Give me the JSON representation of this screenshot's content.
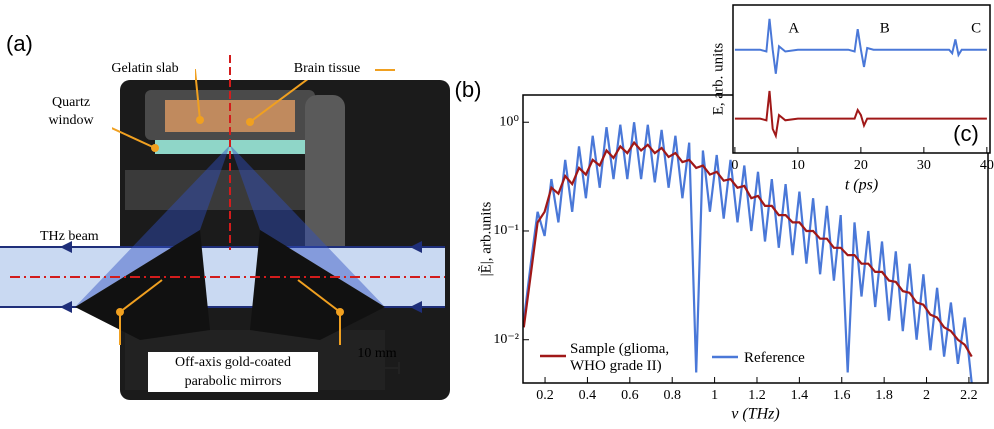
{
  "panel_a": {
    "panel_label": "(a)",
    "gelatin": "Gelatin slab",
    "brain": "Brain tissue",
    "quartz": [
      "Quartz",
      "window"
    ],
    "beam": "THz beam",
    "mirrors": [
      "Off-axis gold-coated",
      "parabolic mirrors"
    ],
    "scale": "10 mm"
  },
  "chart_data": [
    {
      "type": "line",
      "panel_label": "(b)",
      "xlabel": "ν (THz)",
      "ylabel": "|Ẽ|, arb.units",
      "log_y": true,
      "xlim": [
        0.096,
        2.29
      ],
      "ylim": [
        0.004,
        1.78
      ],
      "xticks": [
        0.2,
        0.4,
        0.6,
        0.8,
        1.0,
        1.2,
        1.4,
        1.6,
        1.8,
        2.0,
        2.2
      ],
      "yticks": [
        {
          "value": 0.01,
          "label": "10⁻²"
        },
        {
          "value": 0.1,
          "label": "10⁻¹"
        },
        {
          "value": 1,
          "label": "10⁰"
        }
      ],
      "x": [
        0.1,
        0.133,
        0.165,
        0.198,
        0.23,
        0.263,
        0.295,
        0.328,
        0.36,
        0.393,
        0.425,
        0.458,
        0.49,
        0.523,
        0.555,
        0.588,
        0.62,
        0.653,
        0.685,
        0.718,
        0.75,
        0.783,
        0.815,
        0.848,
        0.88,
        0.913,
        0.945,
        0.978,
        1.01,
        1.043,
        1.075,
        1.108,
        1.14,
        1.173,
        1.205,
        1.238,
        1.27,
        1.303,
        1.335,
        1.368,
        1.4,
        1.433,
        1.465,
        1.498,
        1.53,
        1.563,
        1.595,
        1.628,
        1.66,
        1.693,
        1.725,
        1.758,
        1.79,
        1.823,
        1.855,
        1.888,
        1.92,
        1.953,
        1.985,
        2.018,
        2.05,
        2.083,
        2.115,
        2.148,
        2.18,
        2.213
      ],
      "series": [
        {
          "name": "Reference",
          "color": "#4a78d8",
          "values": [
            0.015,
            0.05,
            0.15,
            0.09,
            0.3,
            0.12,
            0.45,
            0.15,
            0.6,
            0.2,
            0.75,
            0.25,
            0.9,
            0.3,
            0.95,
            0.3,
            1.0,
            0.3,
            0.95,
            0.28,
            0.85,
            0.25,
            0.75,
            0.2,
            0.65,
            0.005,
            0.55,
            0.15,
            0.5,
            0.13,
            0.45,
            0.12,
            0.4,
            0.1,
            0.35,
            0.08,
            0.3,
            0.07,
            0.27,
            0.06,
            0.23,
            0.05,
            0.2,
            0.04,
            0.17,
            0.035,
            0.14,
            0.005,
            0.12,
            0.025,
            0.1,
            0.02,
            0.08,
            0.015,
            0.065,
            0.012,
            0.05,
            0.01,
            0.04,
            0.008,
            0.03,
            0.007,
            0.022,
            0.006,
            0.016,
            0.004
          ]
        },
        {
          "name": "Sample (glioma, WHO grade II)",
          "color": "#a01818",
          "values": [
            0.013,
            0.04,
            0.12,
            0.15,
            0.25,
            0.22,
            0.32,
            0.27,
            0.38,
            0.33,
            0.45,
            0.4,
            0.55,
            0.47,
            0.6,
            0.52,
            0.65,
            0.55,
            0.62,
            0.52,
            0.58,
            0.48,
            0.52,
            0.43,
            0.45,
            0.38,
            0.4,
            0.33,
            0.35,
            0.29,
            0.3,
            0.25,
            0.26,
            0.2,
            0.21,
            0.17,
            0.17,
            0.14,
            0.14,
            0.12,
            0.12,
            0.1,
            0.1,
            0.085,
            0.085,
            0.07,
            0.07,
            0.06,
            0.06,
            0.05,
            0.05,
            0.042,
            0.042,
            0.035,
            0.034,
            0.028,
            0.027,
            0.022,
            0.021,
            0.017,
            0.016,
            0.013,
            0.012,
            0.01,
            0.009,
            0.007
          ]
        }
      ]
    },
    {
      "type": "line",
      "panel_label": "(c)",
      "xlabel": "t (ps)",
      "ylabel": "E, arb. units",
      "xlim": [
        -0.3,
        40.5
      ],
      "ylim": [
        -2,
        2.3
      ],
      "xticks": [
        0,
        10,
        20,
        30,
        40
      ],
      "annotations": [
        {
          "text": "A",
          "x": 8.5,
          "y": 1.6
        },
        {
          "text": "B",
          "x": 23,
          "y": 1.6
        },
        {
          "text": "C",
          "x": 37.5,
          "y": 1.6
        }
      ],
      "x": [
        0,
        4,
        5,
        5.5,
        6,
        6.5,
        7,
        8,
        10,
        18,
        19,
        19.5,
        20,
        20.5,
        21,
        22,
        30,
        34,
        34.5,
        35,
        35.5,
        36,
        40
      ],
      "series": [
        {
          "name": "Reference",
          "color": "#4a78d8",
          "values": [
            1,
            1,
            0.95,
            1.9,
            1.0,
            0.3,
            1.1,
            0.95,
            1,
            1,
            0.95,
            1.6,
            1.0,
            0.5,
            1.05,
            1,
            1,
            1,
            0.9,
            1.3,
            0.85,
            1,
            1
          ]
        },
        {
          "name": "Sample (glioma, WHO grade II)",
          "color": "#a01818",
          "values": [
            -1,
            -1,
            -1.05,
            -0.2,
            -1.3,
            -1.5,
            -0.9,
            -1.05,
            -1,
            -1,
            -1.0,
            -0.75,
            -0.9,
            -1.2,
            -1.0,
            -1,
            -1,
            -1,
            -1,
            -1,
            -1,
            -1,
            -1
          ]
        }
      ]
    }
  ]
}
